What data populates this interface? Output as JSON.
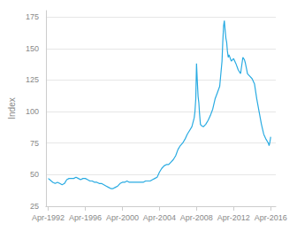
{
  "chart_data": {
    "type": "line",
    "ylabel": "Index",
    "color": "#29ABE2",
    "xlim": [
      1992.0,
      2016.8
    ],
    "xticks": [
      {
        "value": 1992.25,
        "label": "Apr-1992"
      },
      {
        "value": 1996.25,
        "label": "Apr-1996"
      },
      {
        "value": 2000.25,
        "label": "Apr-2000"
      },
      {
        "value": 2004.25,
        "label": "Apr-2004"
      },
      {
        "value": 2008.25,
        "label": "Apr-2008"
      },
      {
        "value": 2012.25,
        "label": "Apr-2012"
      },
      {
        "value": 2016.25,
        "label": "Apr-2016"
      }
    ],
    "ylim": [
      25,
      180
    ],
    "yticks": [
      25,
      50,
      75,
      100,
      125,
      150,
      175
    ],
    "grid": true,
    "x": [
      1992.25,
      1992.42,
      1992.58,
      1992.75,
      1993.0,
      1993.25,
      1993.5,
      1993.75,
      1994.0,
      1994.25,
      1994.5,
      1994.75,
      1995.0,
      1995.25,
      1995.5,
      1995.75,
      1996.0,
      1996.25,
      1996.5,
      1996.75,
      1997.0,
      1997.25,
      1997.5,
      1997.75,
      1998.0,
      1998.25,
      1998.5,
      1998.75,
      1999.0,
      1999.25,
      1999.5,
      1999.75,
      2000.0,
      2000.25,
      2000.5,
      2000.75,
      2001.0,
      2001.25,
      2001.5,
      2001.75,
      2002.0,
      2002.25,
      2002.5,
      2002.75,
      2003.0,
      2003.25,
      2003.5,
      2003.75,
      2004.0,
      2004.25,
      2004.5,
      2004.75,
      2005.0,
      2005.25,
      2005.5,
      2005.75,
      2006.0,
      2006.25,
      2006.5,
      2006.75,
      2007.0,
      2007.25,
      2007.5,
      2007.75,
      2008.0,
      2008.08,
      2008.17,
      2008.25,
      2008.33,
      2008.42,
      2008.5,
      2008.58,
      2008.67,
      2008.75,
      2009.0,
      2009.25,
      2009.5,
      2009.75,
      2010.0,
      2010.25,
      2010.5,
      2010.75,
      2011.0,
      2011.08,
      2011.17,
      2011.25,
      2011.33,
      2011.42,
      2011.5,
      2011.58,
      2011.67,
      2011.75,
      2012.0,
      2012.25,
      2012.5,
      2012.75,
      2013.0,
      2013.25,
      2013.42,
      2013.5,
      2013.67,
      2013.75,
      2014.0,
      2014.25,
      2014.5,
      2014.75,
      2015.0,
      2015.25,
      2015.5,
      2015.75,
      2016.0,
      2016.08,
      2016.17,
      2016.25
    ],
    "values": [
      47,
      46,
      45,
      44,
      43,
      44,
      43,
      42,
      43,
      46,
      47,
      47,
      47,
      48,
      47,
      46,
      47,
      47,
      46,
      45,
      45,
      44,
      44,
      43,
      43,
      42,
      41,
      40,
      39,
      39,
      40,
      41,
      43,
      44,
      44,
      45,
      44,
      44,
      44,
      44,
      44,
      44,
      44,
      45,
      45,
      45,
      46,
      47,
      48,
      52,
      55,
      57,
      58,
      58,
      60,
      62,
      65,
      70,
      73,
      75,
      78,
      82,
      85,
      88,
      95,
      100,
      110,
      138,
      125,
      112,
      107,
      98,
      90,
      89,
      88,
      90,
      93,
      97,
      102,
      110,
      115,
      120,
      140,
      155,
      168,
      172,
      165,
      158,
      155,
      148,
      143,
      145,
      140,
      142,
      138,
      133,
      130,
      143,
      141,
      139,
      133,
      130,
      128,
      126,
      122,
      110,
      100,
      90,
      82,
      78,
      75,
      73,
      76,
      80
    ]
  }
}
